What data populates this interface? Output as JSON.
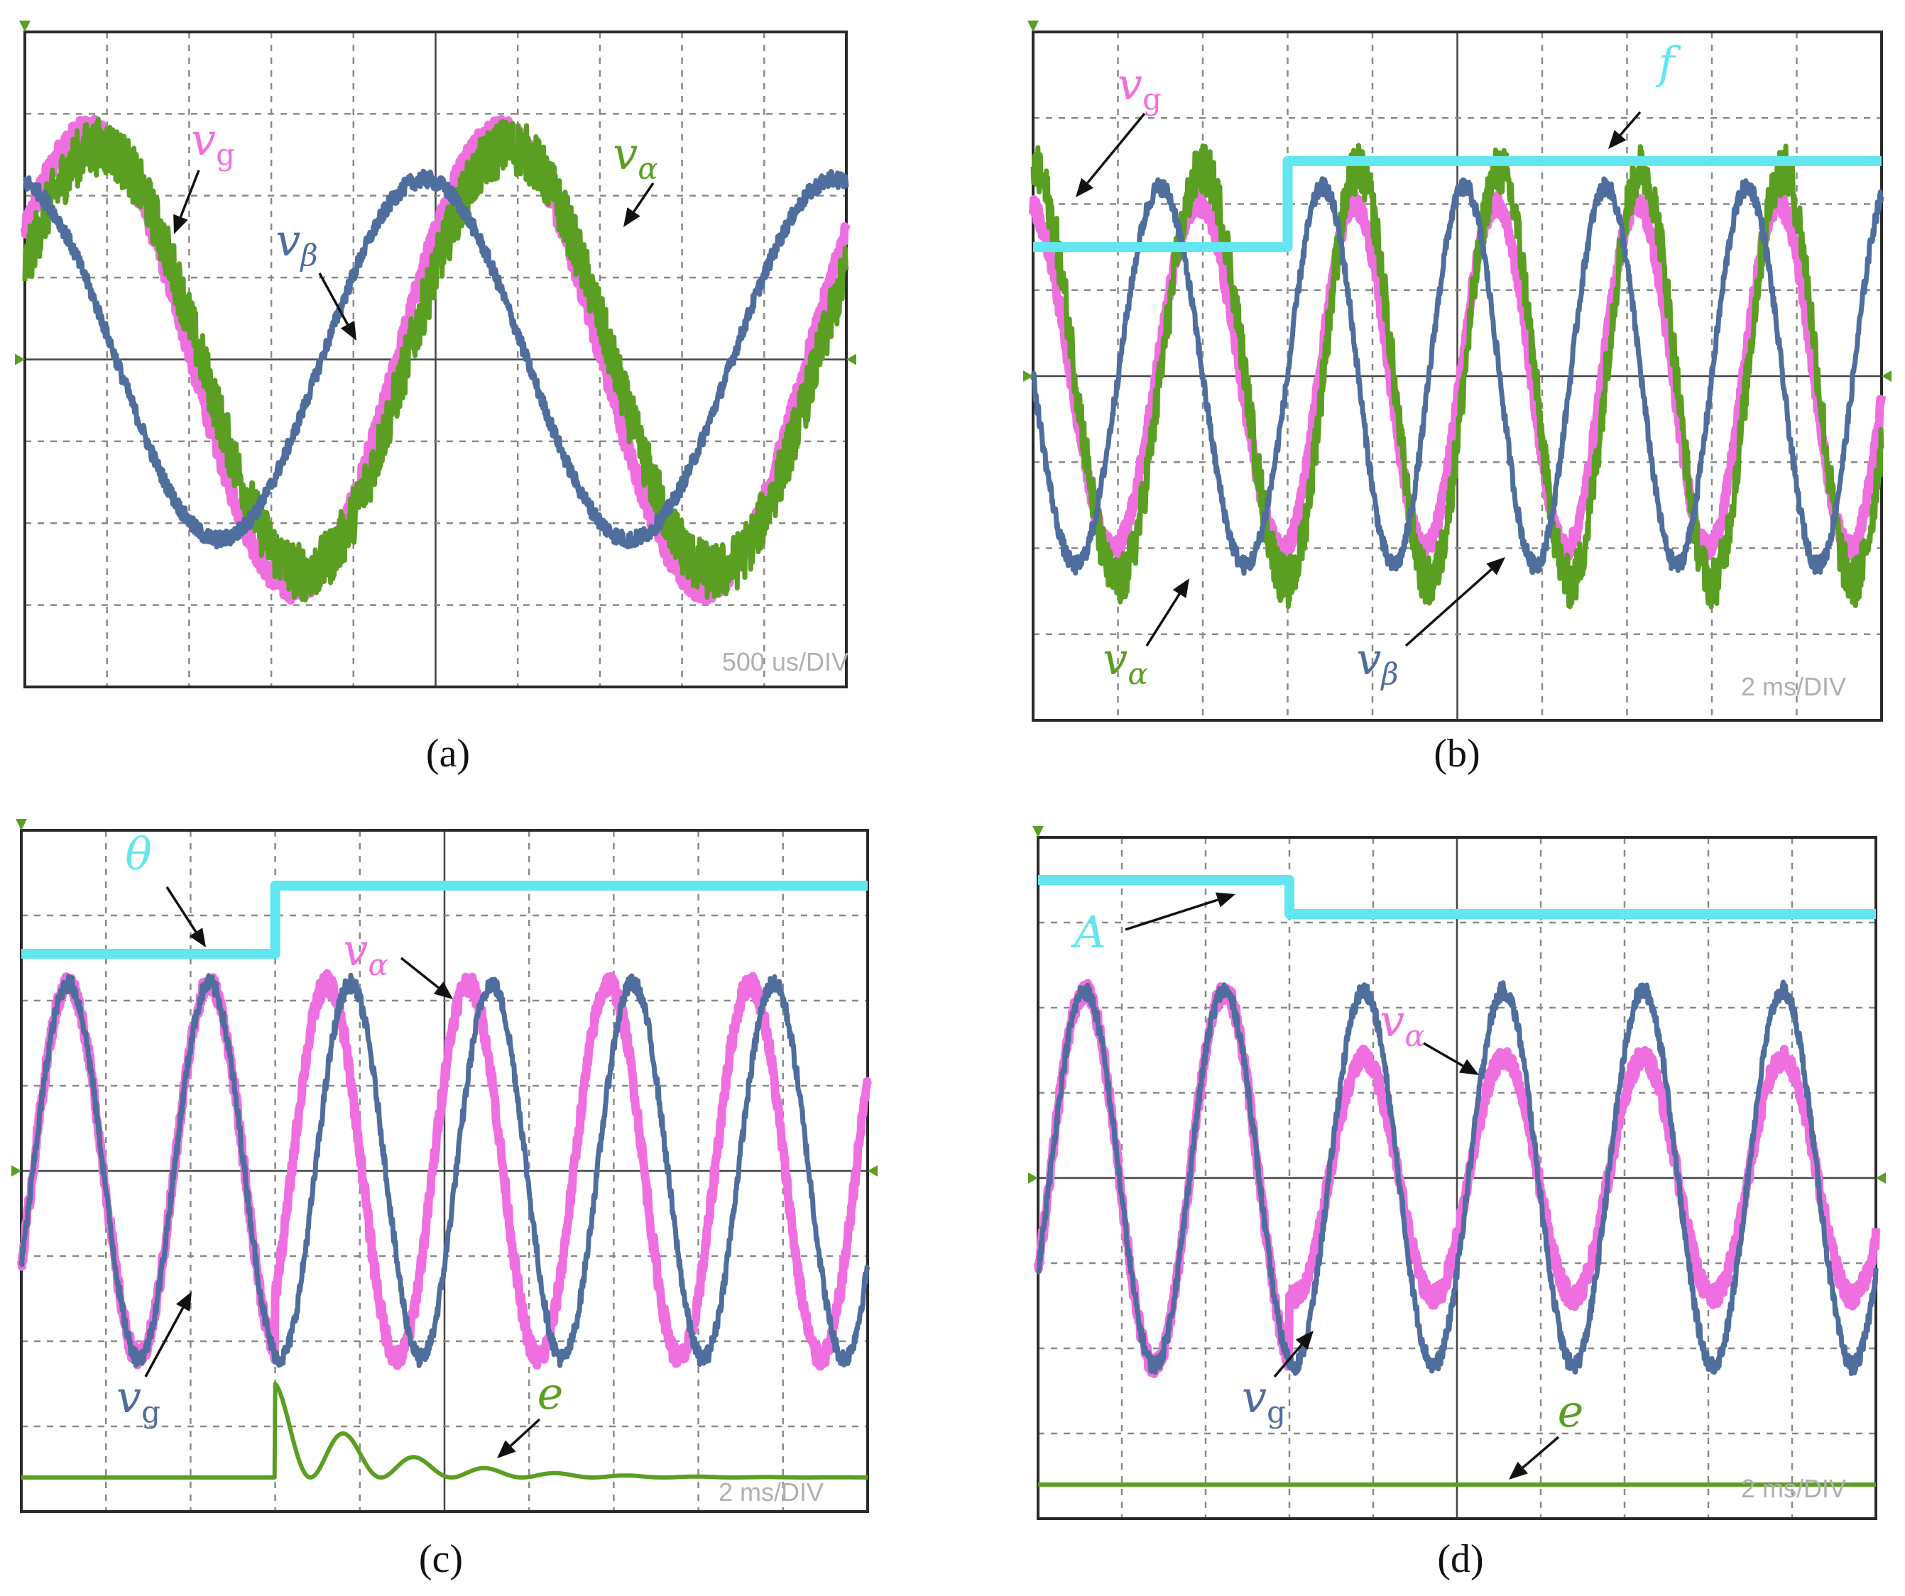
{
  "colors": {
    "pink": "#f06fe0",
    "green": "#5a9e22",
    "blue": "#4f6e9e",
    "cyan": "#62e6f0",
    "grid": "#8a8a8a",
    "frame": "#2a2a2a",
    "arrow": "#111111"
  },
  "chart_data": [
    {
      "type": "line",
      "caption": "(a)",
      "timebase": "500 us/DIV",
      "xlim": [
        0,
        10
      ],
      "ylim": [
        -4,
        4
      ],
      "grid": true,
      "series": [
        {
          "name": "v",
          "subscript": "g",
          "kind": "sine",
          "amplitude": 2.8,
          "cycles_per_div": 0.2,
          "phase_deg": 34,
          "noise": 0.15,
          "color_key": "pink"
        },
        {
          "name": "v",
          "subscript": "α",
          "kind": "sine",
          "amplitude": 2.6,
          "cycles_per_div": 0.2,
          "phase_deg": 25,
          "noise": 0.35,
          "color_key": "green"
        },
        {
          "name": "v",
          "subscript": "β",
          "kind": "sine",
          "amplitude": 2.2,
          "cycles_per_div": 0.2,
          "phase_deg": 100,
          "noise": 0.1,
          "color_key": "blue"
        }
      ]
    },
    {
      "type": "line",
      "caption": "(b)",
      "timebase": "2 ms/DIV",
      "xlim": [
        0,
        10
      ],
      "ylim": [
        -4,
        4
      ],
      "grid": true,
      "series": [
        {
          "name": "v",
          "subscript": "g",
          "kind": "sine",
          "amplitude": 2.0,
          "cycles_per_div": [
            0.5,
            0.6
          ],
          "step_at": 3.0,
          "phase_deg": 100,
          "noise": 0.12,
          "color_key": "pink"
        },
        {
          "name": "v",
          "subscript": "α",
          "kind": "sine",
          "amplitude": 2.4,
          "cycles_per_div": [
            0.5,
            0.6
          ],
          "step_at": 3.0,
          "phase_deg": 90,
          "noise": 0.3,
          "color_key": "green"
        },
        {
          "name": "v",
          "subscript": "β",
          "kind": "sine",
          "amplitude": 2.2,
          "cycles_per_div": [
            0.5,
            0.6
          ],
          "step_at": 3.0,
          "phase_deg": 180,
          "noise": 0.1,
          "color_key": "blue"
        },
        {
          "name": "f",
          "subscript": "",
          "kind": "step",
          "levels": [
            1.5,
            2.5
          ],
          "step_at": 3.0,
          "color_key": "cyan"
        }
      ]
    },
    {
      "type": "line",
      "caption": "(c)",
      "timebase": "2 ms/DIV",
      "xlim": [
        0,
        10
      ],
      "ylim": [
        -4,
        4
      ],
      "grid": true,
      "series": [
        {
          "name": "v",
          "subscript": "α",
          "kind": "sine",
          "amplitude": 2.2,
          "cycles_per_div": 0.6,
          "phase_deg": 330,
          "phase_jump_deg": 60,
          "step_at": 3.0,
          "noise": 0.12,
          "color_key": "pink"
        },
        {
          "name": "v",
          "subscript": "g",
          "kind": "sine",
          "amplitude": 2.2,
          "cycles_per_div": 0.6,
          "phase_deg": 330,
          "noise": 0.1,
          "color_key": "blue"
        },
        {
          "name": "θ",
          "subscript": "",
          "kind": "step",
          "levels": [
            2.55,
            3.35
          ],
          "step_at": 3.0,
          "color_key": "cyan"
        },
        {
          "name": "e",
          "subscript": "",
          "kind": "ring",
          "base": -3.6,
          "step_at": 3.0,
          "amplitude": 1.1,
          "decay_per_div": 0.42,
          "cycles_per_div": 1.2,
          "color_key": "green"
        }
      ]
    },
    {
      "type": "line",
      "caption": "(d)",
      "timebase": "2 ms/DIV",
      "xlim": [
        0,
        10
      ],
      "ylim": [
        -4,
        4
      ],
      "grid": true,
      "series": [
        {
          "name": "v",
          "subscript": "α",
          "kind": "sine",
          "amplitude": [
            2.2,
            1.4
          ],
          "cycles_per_div": 0.6,
          "phase_deg": 330,
          "step_at": 3.0,
          "noise": 0.12,
          "color_key": "pink"
        },
        {
          "name": "v",
          "subscript": "g",
          "kind": "sine",
          "amplitude": 2.2,
          "cycles_per_div": 0.6,
          "phase_deg": 330,
          "noise": 0.1,
          "color_key": "blue"
        },
        {
          "name": "A",
          "subscript": "",
          "kind": "step",
          "levels": [
            3.5,
            3.1
          ],
          "step_at": 3.0,
          "color_key": "cyan"
        },
        {
          "name": "e",
          "subscript": "",
          "kind": "flat",
          "base": -3.6,
          "color_key": "green"
        }
      ]
    }
  ]
}
